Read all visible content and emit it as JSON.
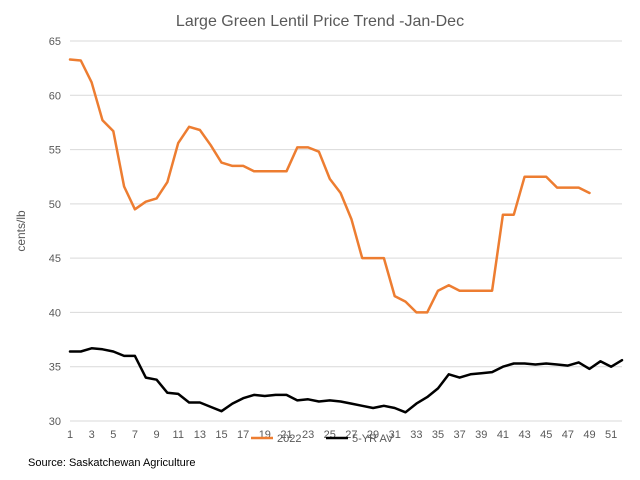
{
  "chart_data": {
    "type": "line",
    "title": "Large Green Lentil Price Trend -Jan-Dec",
    "xlabel": "",
    "ylabel": "cents/lb",
    "xlim": [
      1,
      52
    ],
    "ylim": [
      30,
      65
    ],
    "x_ticks": [
      1,
      3,
      5,
      7,
      9,
      11,
      13,
      15,
      17,
      19,
      21,
      23,
      25,
      27,
      29,
      31,
      33,
      35,
      37,
      39,
      41,
      43,
      45,
      47,
      49,
      51
    ],
    "y_ticks": [
      30,
      35,
      40,
      45,
      50,
      55,
      60,
      65
    ],
    "grid": "horizontal",
    "legend_position": "bottom",
    "source": "Source: Saskatchewan Agriculture",
    "series": [
      {
        "name": "2022",
        "color": "#ED7D31",
        "x": [
          1,
          2,
          3,
          4,
          5,
          6,
          7,
          8,
          9,
          10,
          11,
          12,
          13,
          14,
          15,
          16,
          17,
          18,
          19,
          20,
          21,
          22,
          23,
          24,
          25,
          26,
          27,
          28,
          29,
          30,
          31,
          32,
          33,
          34,
          35,
          36,
          37,
          38,
          39,
          40,
          41,
          42,
          43,
          44,
          45,
          46,
          47,
          48,
          49
        ],
        "values": [
          63.3,
          63.2,
          61.2,
          57.7,
          56.7,
          51.6,
          49.5,
          50.2,
          50.5,
          52.0,
          55.6,
          57.1,
          56.8,
          55.4,
          53.8,
          53.5,
          53.5,
          53.0,
          53.0,
          53.0,
          53.0,
          55.2,
          55.2,
          54.8,
          52.3,
          51.0,
          48.6,
          45.0,
          45.0,
          45.0,
          41.5,
          41.0,
          40.0,
          40.0,
          42.0,
          42.5,
          42.0,
          42.0,
          42.0,
          42.0,
          49.0,
          49.0,
          52.5,
          52.5,
          52.5,
          51.5,
          51.5,
          51.5,
          51.0
        ]
      },
      {
        "name": "5-YR AV",
        "color": "#000000",
        "x": [
          1,
          2,
          3,
          4,
          5,
          6,
          7,
          8,
          9,
          10,
          11,
          12,
          13,
          14,
          15,
          16,
          17,
          18,
          19,
          20,
          21,
          22,
          23,
          24,
          25,
          26,
          27,
          28,
          29,
          30,
          31,
          32,
          33,
          34,
          35,
          36,
          37,
          38,
          39,
          40,
          41,
          42,
          43,
          44,
          45,
          46,
          47,
          48,
          49,
          50,
          51,
          52
        ],
        "values": [
          36.4,
          36.4,
          36.7,
          36.6,
          36.4,
          36.0,
          36.0,
          34.0,
          33.8,
          32.6,
          32.5,
          31.7,
          31.7,
          31.3,
          30.9,
          31.6,
          32.1,
          32.4,
          32.3,
          32.4,
          32.4,
          31.9,
          32.0,
          31.8,
          31.9,
          31.8,
          31.6,
          31.4,
          31.2,
          31.4,
          31.2,
          30.8,
          31.6,
          32.2,
          33.0,
          34.3,
          34.0,
          34.3,
          34.4,
          34.5,
          35.0,
          35.3,
          35.3,
          35.2,
          35.3,
          35.2,
          35.1,
          35.4,
          34.8,
          35.5,
          35.0,
          35.6
        ]
      }
    ]
  }
}
